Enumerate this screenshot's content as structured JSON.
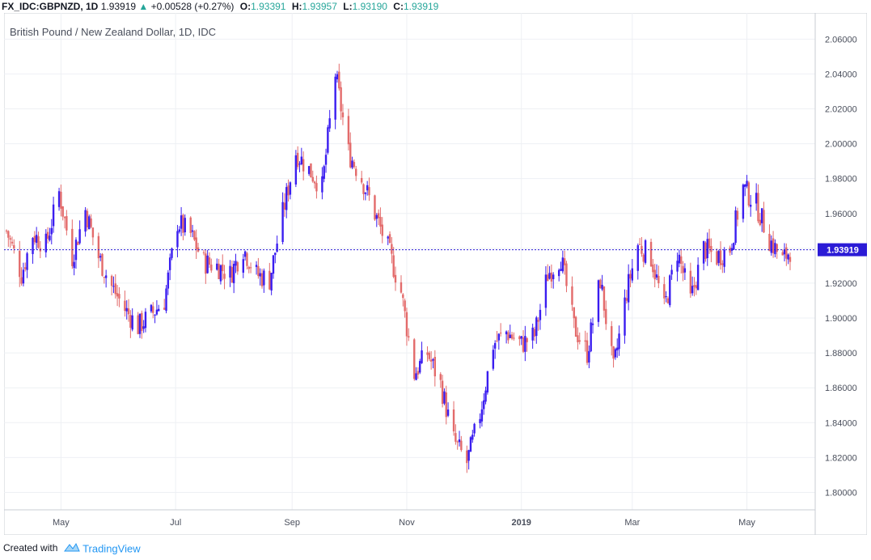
{
  "header": {
    "symbol": "FX_IDC:GBPNZD, 1D",
    "last": "1.93919",
    "change": "+0.00528 (+0.27%)",
    "o_label": "O:",
    "o_value": "1.93391",
    "h_label": "H:",
    "h_value": "1.93957",
    "l_label": "L:",
    "l_value": "1.93190",
    "c_label": "C:",
    "c_value": "1.93919"
  },
  "footer": {
    "created_with": "Created with",
    "brand": "TradingView"
  },
  "colors": {
    "up": "#3a1df0",
    "down": "#e36b6b",
    "price_line": "#2b1bd6",
    "grid": "#eef0f4",
    "axis_text": "#4a4f5c"
  },
  "chart_data": {
    "type": "candlestick",
    "title": "British Pound / New Zealand Dollar, 1D, IDC",
    "y_ticks": [
      "2.06000",
      "2.04000",
      "2.02000",
      "2.00000",
      "1.98000",
      "1.96000",
      "1.94000",
      "1.92000",
      "1.90000",
      "1.88000",
      "1.86000",
      "1.84000",
      "1.82000",
      "1.80000"
    ],
    "ylim": [
      1.79,
      2.075
    ],
    "x_ticks": [
      "May",
      "Jul",
      "Sep",
      "Nov",
      "2019",
      "Mar",
      "May"
    ],
    "x_tick_bold": [
      false,
      false,
      false,
      false,
      true,
      false,
      false
    ],
    "x_tick_dates": [
      "2018-05-01",
      "2018-07-01",
      "2018-09-01",
      "2018-11-01",
      "2019-01-01",
      "2019-03-01",
      "2019-05-01"
    ],
    "start_date": "2018-04-02",
    "end_date": "2019-05-24",
    "last_price": "1.93919",
    "price_line_value": 1.93919,
    "grid": true,
    "anchors": [
      [
        "2018-04-02",
        1.95
      ],
      [
        "2018-04-10",
        1.925
      ],
      [
        "2018-04-16",
        1.948
      ],
      [
        "2018-04-23",
        1.942
      ],
      [
        "2018-04-30",
        1.972
      ],
      [
        "2018-05-07",
        1.935
      ],
      [
        "2018-05-14",
        1.962
      ],
      [
        "2018-05-21",
        1.935
      ],
      [
        "2018-05-28",
        1.918
      ],
      [
        "2018-06-04",
        1.905
      ],
      [
        "2018-06-11",
        1.895
      ],
      [
        "2018-06-18",
        1.902
      ],
      [
        "2018-06-25",
        1.91
      ],
      [
        "2018-07-02",
        1.955
      ],
      [
        "2018-07-09",
        1.948
      ],
      [
        "2018-07-16",
        1.932
      ],
      [
        "2018-07-23",
        1.93
      ],
      [
        "2018-07-30",
        1.925
      ],
      [
        "2018-08-06",
        1.94
      ],
      [
        "2018-08-13",
        1.925
      ],
      [
        "2018-08-20",
        1.922
      ],
      [
        "2018-08-27",
        1.96
      ],
      [
        "2018-09-03",
        1.995
      ],
      [
        "2018-09-10",
        1.985
      ],
      [
        "2018-09-17",
        1.975
      ],
      [
        "2018-09-24",
        2.04
      ],
      [
        "2018-10-01",
        1.995
      ],
      [
        "2018-10-08",
        1.98
      ],
      [
        "2018-10-15",
        1.96
      ],
      [
        "2018-10-22",
        1.94
      ],
      [
        "2018-10-29",
        1.915
      ],
      [
        "2018-11-05",
        1.868
      ],
      [
        "2018-11-12",
        1.88
      ],
      [
        "2018-11-19",
        1.862
      ],
      [
        "2018-11-26",
        1.83
      ],
      [
        "2018-12-03",
        1.817
      ],
      [
        "2018-12-10",
        1.845
      ],
      [
        "2018-12-17",
        1.885
      ],
      [
        "2018-12-24",
        1.892
      ],
      [
        "2019-01-01",
        1.885
      ],
      [
        "2019-01-08",
        1.89
      ],
      [
        "2019-01-15",
        1.925
      ],
      [
        "2019-01-22",
        1.935
      ],
      [
        "2019-01-29",
        1.895
      ],
      [
        "2019-02-05",
        1.88
      ],
      [
        "2019-02-12",
        1.922
      ],
      [
        "2019-02-19",
        1.87
      ],
      [
        "2019-02-26",
        1.915
      ],
      [
        "2019-03-04",
        1.942
      ],
      [
        "2019-03-11",
        1.935
      ],
      [
        "2019-03-18",
        1.905
      ],
      [
        "2019-03-25",
        1.938
      ],
      [
        "2019-04-01",
        1.91
      ],
      [
        "2019-04-08",
        1.94
      ],
      [
        "2019-04-15",
        1.935
      ],
      [
        "2019-04-22",
        1.94
      ],
      [
        "2019-04-29",
        1.975
      ],
      [
        "2019-05-06",
        1.965
      ],
      [
        "2019-05-13",
        1.945
      ],
      [
        "2019-05-20",
        1.933
      ],
      [
        "2019-05-24",
        1.939
      ]
    ]
  }
}
